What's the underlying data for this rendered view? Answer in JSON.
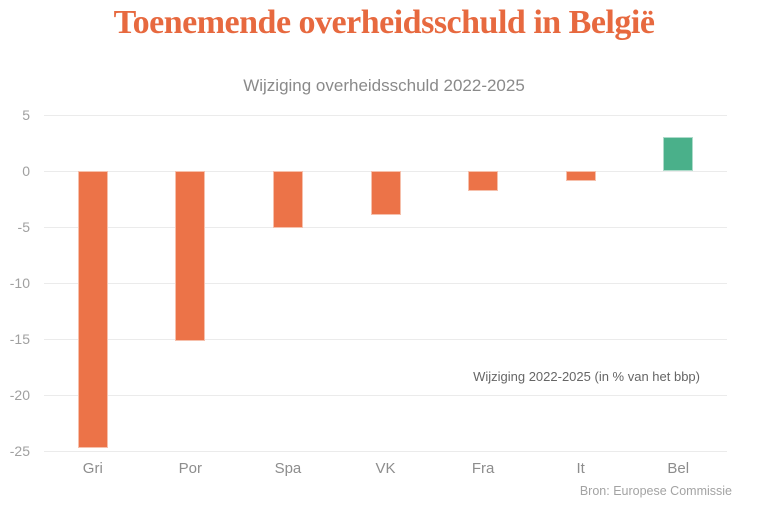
{
  "header": {
    "title": "Toenemende overheidsschuld in België"
  },
  "chart_data": {
    "type": "bar",
    "title": "Wijziging overheidsschuld 2022-2025",
    "categories": [
      "Gri",
      "Por",
      "Spa",
      "VK",
      "Fra",
      "It",
      "Bel"
    ],
    "values": [
      -24.7,
      -15.2,
      -5.1,
      -3.9,
      -1.8,
      -0.9,
      3.0
    ],
    "ylim": [
      -25,
      5
    ],
    "yticks": [
      5,
      0,
      -5,
      -10,
      -15,
      -20,
      -25
    ],
    "grid": true,
    "legend": "none",
    "xlabel": "",
    "ylabel": "",
    "annotation": "Wijziging 2022-2025 (in % van het bbp)",
    "source": "Bron: Europese Commissie",
    "colors": {
      "bar_negative": "#ec7348",
      "bar_positive": "#4ab08a",
      "title": "#e7693f",
      "gridline": "#ebebeb",
      "tick_label": "#a0a0a0"
    }
  }
}
